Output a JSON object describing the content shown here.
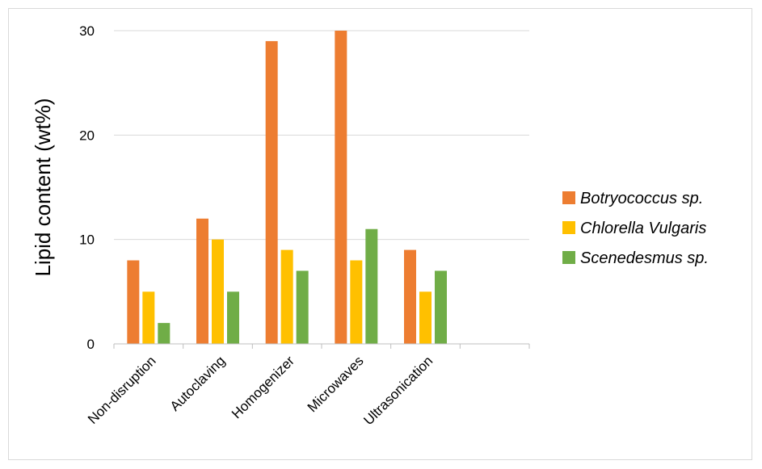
{
  "chart_data": {
    "type": "bar",
    "categories": [
      "Non-disruption",
      "Autoclaving",
      "Homogenizer",
      "Microwaves",
      "Ultrasonication",
      ""
    ],
    "series": [
      {
        "name": "Botryococcus sp.",
        "color": "#ED7D31",
        "values": [
          8,
          12,
          29,
          30,
          9,
          null
        ]
      },
      {
        "name": "Chlorella Vulgaris",
        "color": "#FFC000",
        "values": [
          5,
          10,
          9,
          8,
          5,
          null
        ]
      },
      {
        "name": "Scenedesmus sp.",
        "color": "#70AD47",
        "values": [
          2,
          5,
          7,
          11,
          7,
          null
        ]
      }
    ],
    "title": "",
    "xlabel": "",
    "ylabel": "Lipid content (wt%)",
    "ylim": [
      0,
      30
    ],
    "yticks": [
      0,
      10,
      20,
      30
    ],
    "grid": true,
    "legend_position": "right"
  }
}
